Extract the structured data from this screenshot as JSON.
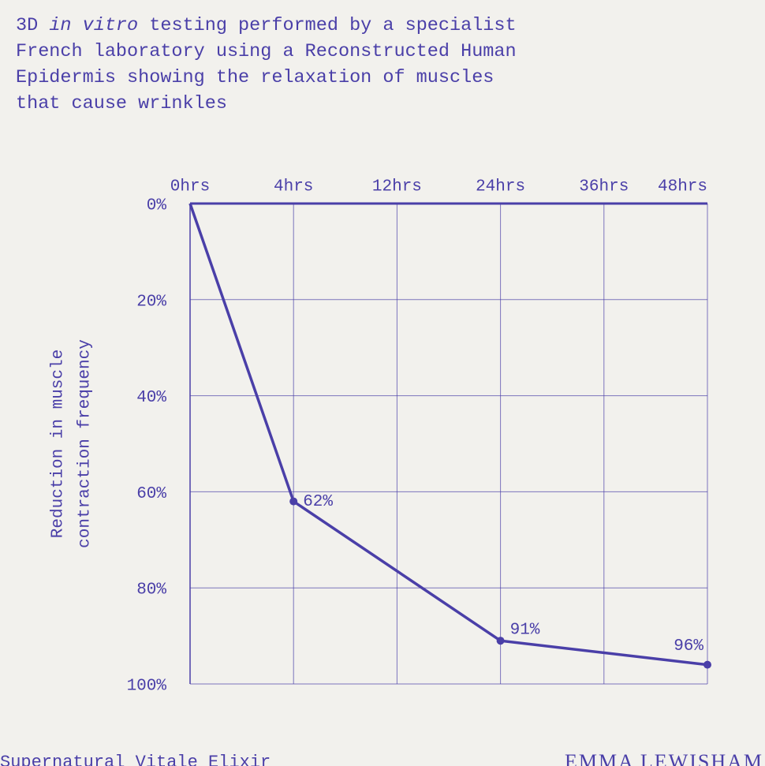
{
  "chart_data": {
    "type": "line",
    "title": [
      "3D ",
      "in vitro",
      " testing performed by a specialist French laboratory using a Reconstructed Human Epidermis showing the relaxation of muscles that cause wrinkles"
    ],
    "y_label": [
      "Reduction in muscle",
      "contraction frequency"
    ],
    "categories": [
      "0hrs",
      "4hrs",
      "12hrs",
      "24hrs",
      "36hrs",
      "48hrs"
    ],
    "series": [
      {
        "color": "#4a3fa8",
        "values": [
          0,
          62,
          null,
          91,
          null,
          96
        ],
        "value_labels": [
          null,
          "62%",
          null,
          "91%",
          null,
          "96%"
        ]
      }
    ],
    "span_gaps": true,
    "ylim": [
      0,
      100
    ],
    "y_inverted": true,
    "x_axis_position": "top",
    "yticks": [
      {
        "value": 0,
        "label": "0%"
      },
      {
        "value": 20,
        "label": "20%"
      },
      {
        "value": 40,
        "label": "40%"
      },
      {
        "value": 60,
        "label": "60%"
      },
      {
        "value": 80,
        "label": "80%"
      },
      {
        "value": 100,
        "label": "100%"
      }
    ],
    "grid": true,
    "footer_left": "Supernatural Vitale Elixir",
    "footer_right": "EMMA LEWISHAM"
  }
}
